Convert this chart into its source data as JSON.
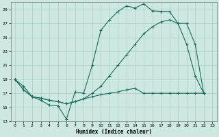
{
  "xlabel": "Humidex (Indice chaleur)",
  "bg_color": "#cce8e0",
  "grid_color": "#aaccc4",
  "line_color": "#1a6b5a",
  "xlim": [
    -0.5,
    23.5
  ],
  "ylim": [
    13,
    30
  ],
  "yticks": [
    13,
    15,
    17,
    19,
    21,
    23,
    25,
    27,
    29
  ],
  "xticks": [
    0,
    1,
    2,
    3,
    4,
    5,
    6,
    7,
    8,
    9,
    10,
    11,
    12,
    13,
    14,
    15,
    16,
    17,
    18,
    19,
    20,
    21,
    22,
    23
  ],
  "line1_x": [
    0,
    1,
    2,
    3,
    4,
    5,
    6,
    7,
    8,
    9,
    10,
    11,
    12,
    13,
    14,
    15,
    16,
    17,
    18,
    19,
    20,
    21,
    22
  ],
  "line1_y": [
    19.0,
    18.0,
    16.5,
    16.0,
    15.3,
    15.2,
    13.3,
    17.2,
    17.0,
    21.0,
    26.0,
    27.5,
    28.7,
    29.5,
    29.2,
    29.8,
    28.8,
    28.7,
    28.7,
    27.0,
    24.0,
    19.5,
    17.0
  ],
  "line2_x": [
    0,
    1,
    2,
    3,
    4,
    5,
    6,
    7,
    8,
    9,
    10,
    11,
    12,
    13,
    14,
    15,
    16,
    17,
    18,
    19,
    20,
    21,
    22
  ],
  "line2_y": [
    19.0,
    17.5,
    16.5,
    16.3,
    16.0,
    15.8,
    15.5,
    15.8,
    16.2,
    17.0,
    18.0,
    19.5,
    21.0,
    22.5,
    24.0,
    25.5,
    26.5,
    27.2,
    27.5,
    27.0,
    27.0,
    24.0,
    17.0
  ],
  "line3_x": [
    0,
    1,
    2,
    3,
    4,
    5,
    6,
    7,
    8,
    9,
    10,
    11,
    12,
    13,
    14,
    15,
    16,
    17,
    18,
    19,
    20,
    21,
    22
  ],
  "line3_y": [
    19.0,
    17.5,
    16.5,
    16.3,
    16.0,
    15.8,
    15.5,
    15.8,
    16.2,
    16.5,
    16.8,
    17.0,
    17.2,
    17.5,
    17.7,
    17.0,
    17.0,
    17.0,
    17.0,
    17.0,
    17.0,
    17.0,
    17.0
  ]
}
